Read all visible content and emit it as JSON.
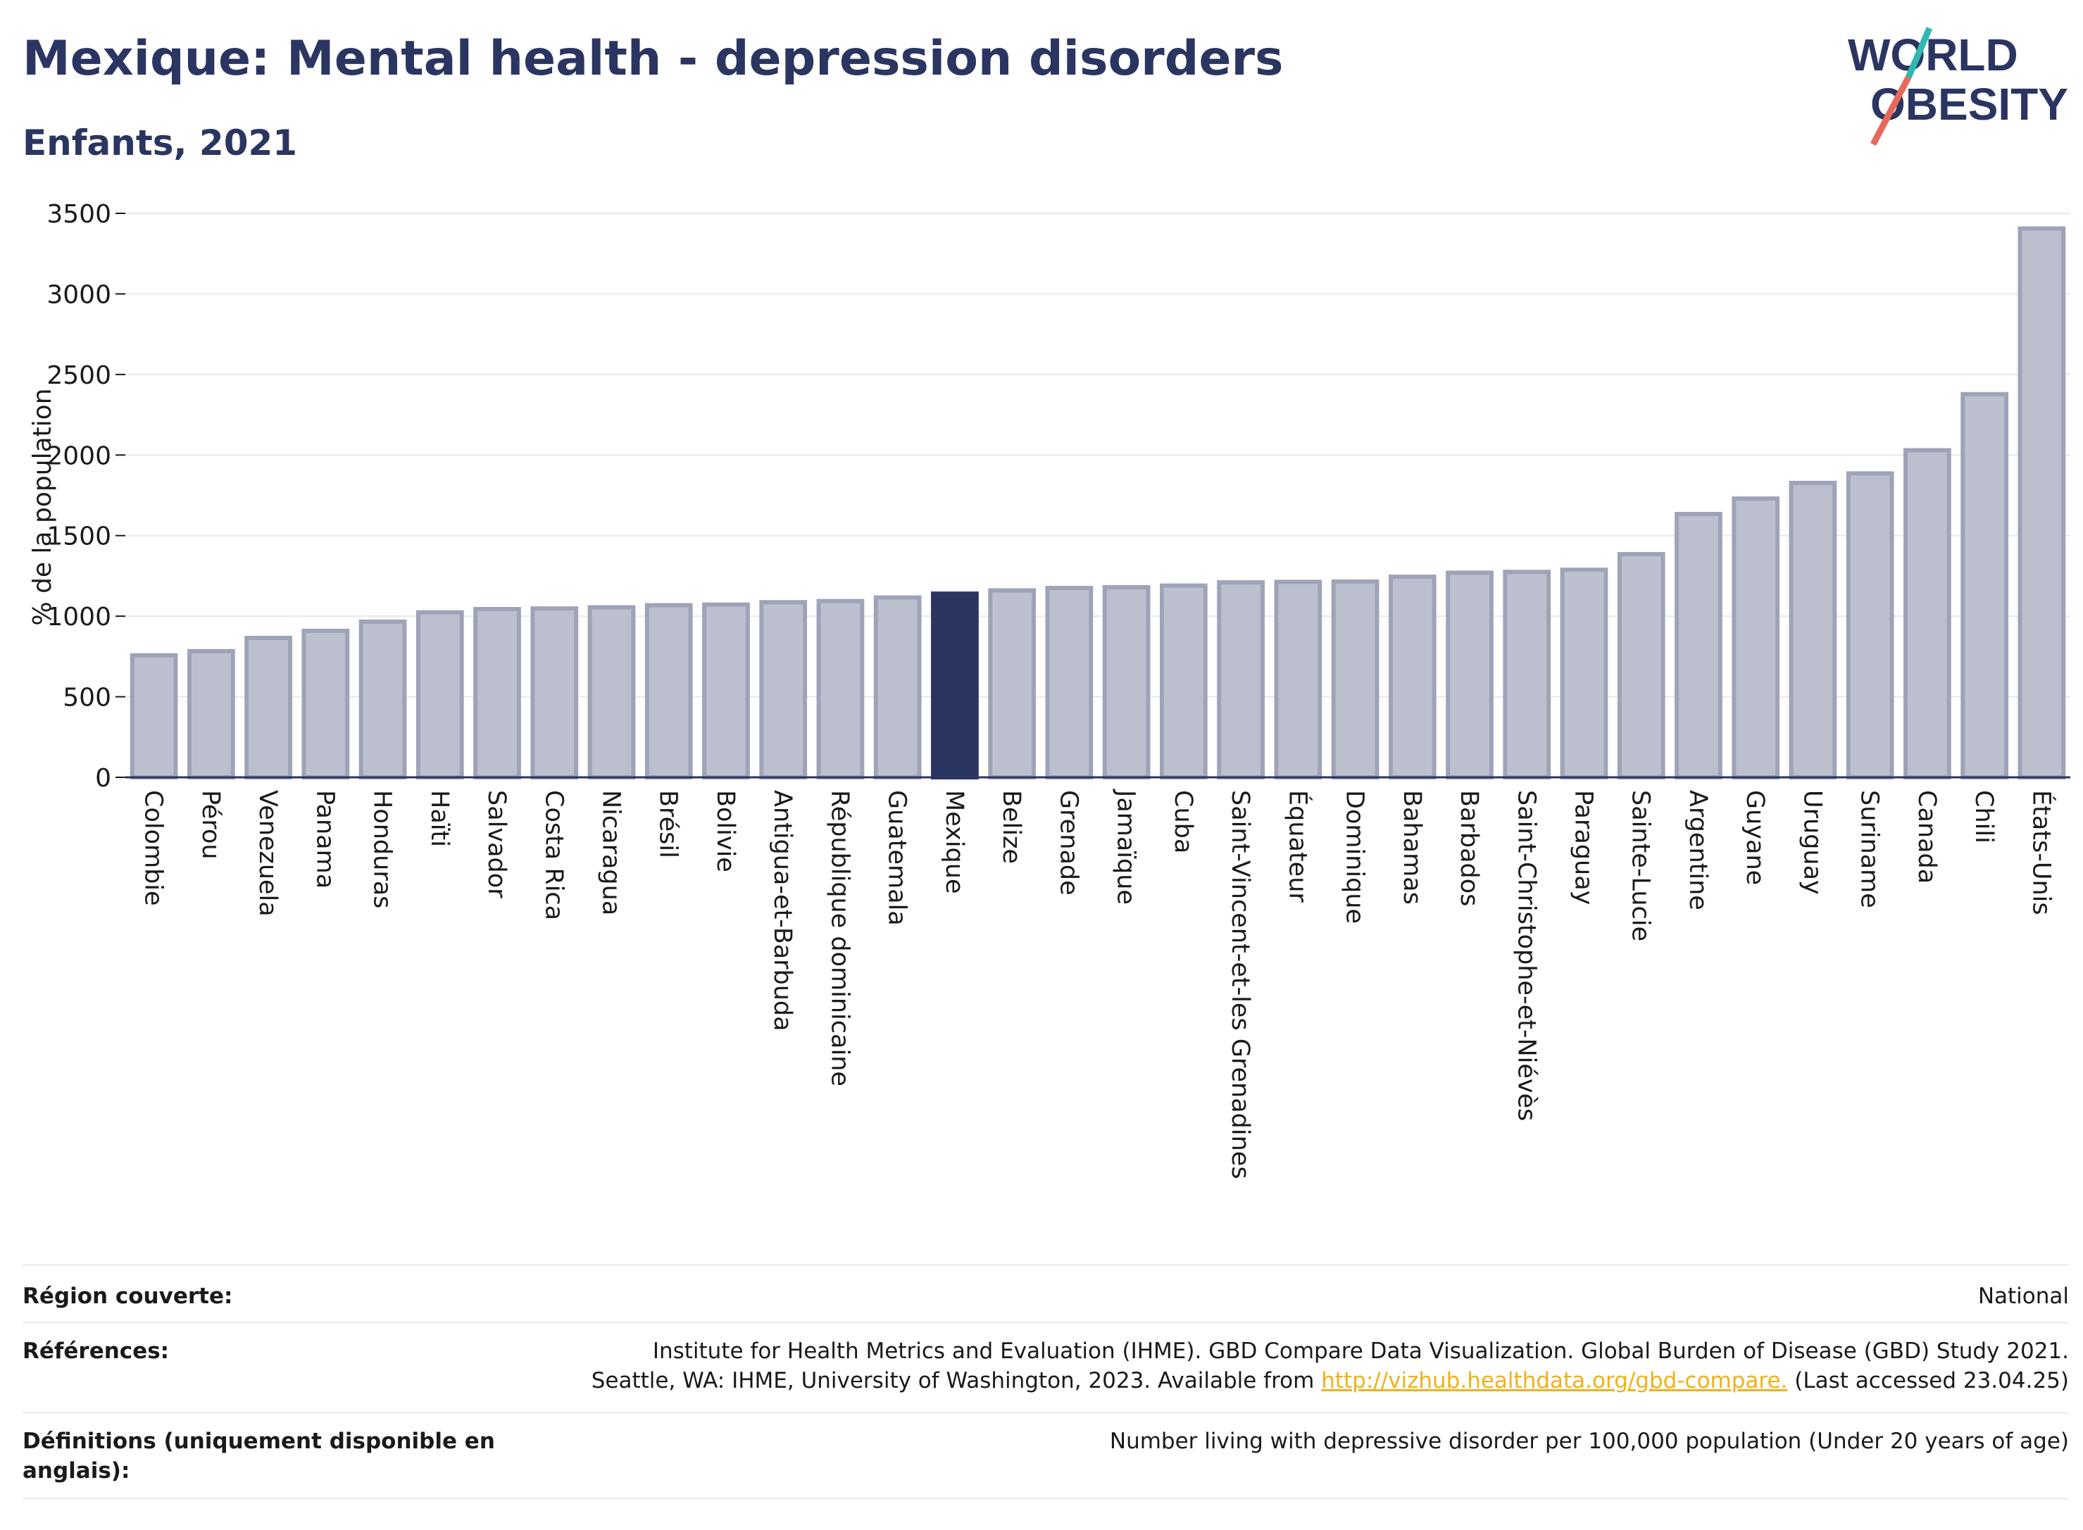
{
  "header": {
    "title": "Mexique: Mental health - depression disorders",
    "subtitle": "Enfants, 2021"
  },
  "logo": {
    "line1": "WORLD",
    "line2": "OBESITY",
    "icon": "world-obesity-logo"
  },
  "colors": {
    "title": "#2b3561",
    "bar_fill": "#bcc0ce",
    "bar_stroke": "#9ea3b8",
    "highlight": "#2b3561",
    "link": "#f0b21a",
    "logo_teal": "#2fb8b0",
    "logo_coral": "#e8685a"
  },
  "chart_data": {
    "type": "bar",
    "ylabel": "% de la population",
    "xlabel": "",
    "ylim": [
      0,
      3500
    ],
    "yticks": [
      0,
      500,
      1000,
      1500,
      2000,
      2500,
      3000,
      3500
    ],
    "grid": true,
    "highlight": "Mexique",
    "categories": [
      "Colombie",
      "Pérou",
      "Venezuela",
      "Panama",
      "Honduras",
      "Haïti",
      "Salvador",
      "Costa Rica",
      "Nicaragua",
      "Brésil",
      "Bolivie",
      "Antigua-et-Barbuda",
      "République dominicaine",
      "Guatemala",
      "Mexique",
      "Belize",
      "Grenade",
      "Jamaïque",
      "Cuba",
      "Saint-Vincent-et-les Grenadines",
      "Équateur",
      "Dominique",
      "Bahamas",
      "Barbados",
      "Saint-Christophe-et-Niévès",
      "Paraguay",
      "Sainte-Lucie",
      "Argentine",
      "Guyane",
      "Uruguay",
      "Suriname",
      "Canada",
      "Chili",
      "États-Unis"
    ],
    "values": [
      757,
      783,
      865,
      909,
      966,
      1024,
      1044,
      1048,
      1055,
      1068,
      1072,
      1087,
      1094,
      1116,
      1140,
      1160,
      1175,
      1180,
      1190,
      1210,
      1213,
      1215,
      1245,
      1270,
      1275,
      1288,
      1385,
      1634,
      1730,
      1827,
      1886,
      2030,
      2378,
      3406
    ]
  },
  "footer": {
    "region_label": "Région couverte:",
    "region_value": "National",
    "refs_label": "Références:",
    "refs_line1": "Institute for Health Metrics and Evaluation (IHME). GBD Compare Data Visualization. Global Burden of Disease (GBD) Study 2021.",
    "refs_line2_pre": "Seattle, WA: IHME, University of Washington, 2023. Available from ",
    "refs_link": "http://vizhub.healthdata.org/gbd-compare.",
    "refs_line2_post": " (Last accessed 23.04.25)",
    "defs_label": "Définitions (uniquement disponible en anglais):",
    "defs_value": "Number living with depressive disorder per 100,000 population (Under 20 years of age)"
  }
}
